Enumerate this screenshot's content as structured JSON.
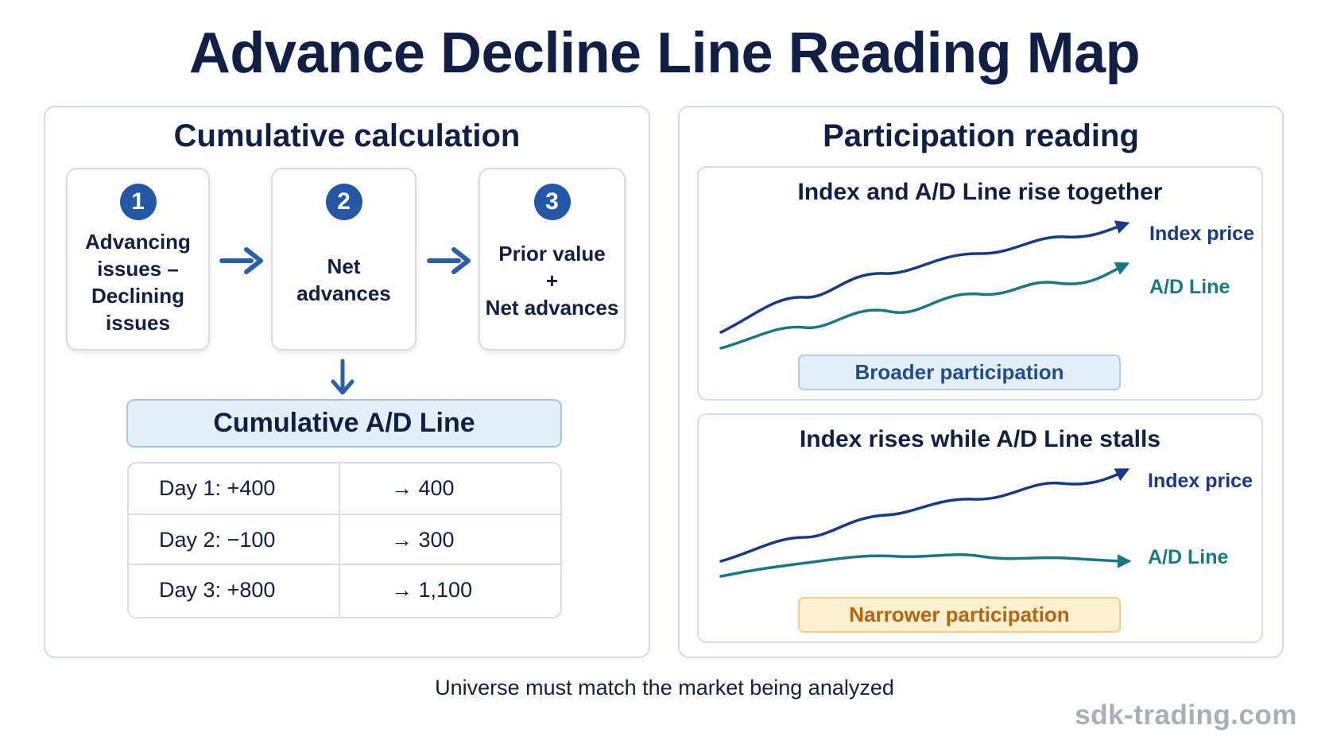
{
  "title": "Advance Decline Line Reading Map",
  "colors": {
    "navy": "#0f1f45",
    "index_line": "#17398a",
    "ad_line": "#157a86",
    "step_blue": "#2457a6",
    "tag_blue_text": "#1f4e8c",
    "tag_orange_text": "#b9650c",
    "border": "#d6dde8"
  },
  "left_panel": {
    "title": "Cumulative calculation",
    "steps": [
      {
        "number": "1",
        "lines": [
          "Advancing",
          "issues –",
          "Declining",
          "issues"
        ]
      },
      {
        "number": "2",
        "lines": [
          "Net",
          "advances"
        ]
      },
      {
        "number": "3",
        "lines": [
          "Prior value",
          "+",
          "Net advances"
        ]
      }
    ],
    "arrow_icons": [
      "arrow-right-icon",
      "arrow-right-icon",
      "arrow-down-icon"
    ],
    "result_label": "Cumulative A/D Line",
    "table": [
      {
        "day": "Day 1:",
        "net": "+400",
        "arrow": "→",
        "cumulative": "400"
      },
      {
        "day": "Day 2:",
        "net": "−100",
        "arrow": "→",
        "cumulative": "300"
      },
      {
        "day": "Day 3:",
        "net": "+800",
        "arrow": "→",
        "cumulative": "1,100"
      }
    ]
  },
  "right_panel": {
    "title": "Participation reading",
    "scenarios": [
      {
        "title": "Index and A/D Line rise together",
        "index_label": "Index price",
        "ad_label": "A/D Line",
        "tag": "Broader participation",
        "ad_trend": "rising"
      },
      {
        "title": "Index rises while A/D Line stalls",
        "index_label": "Index price",
        "ad_label": "A/D Line",
        "tag": "Narrower participation",
        "ad_trend": "flat"
      }
    ]
  },
  "footnote": "Universe must match the market being analyzed",
  "watermark": "sdk-trading.com"
}
